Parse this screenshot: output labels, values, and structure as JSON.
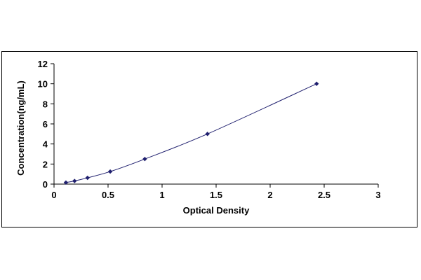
{
  "chart_data": {
    "type": "scatter",
    "xlabel": "Optical Density",
    "ylabel": "Concentration(ng/mL)",
    "xlim": [
      0,
      3
    ],
    "ylim": [
      0,
      12
    ],
    "xticks": [
      0,
      0.5,
      1,
      1.5,
      2,
      2.5,
      3
    ],
    "xtick_labels": [
      "0",
      "0.5",
      "1",
      "1.5",
      "2",
      "2.5",
      "3"
    ],
    "yticks": [
      0,
      2,
      4,
      6,
      8,
      10,
      12
    ],
    "ytick_labels": [
      "0",
      "2",
      "4",
      "6",
      "8",
      "10",
      "12"
    ],
    "grid": false,
    "legend": "none",
    "series": [
      {
        "x": [
          0.11,
          0.19,
          0.31,
          0.52,
          0.84,
          1.42,
          2.43
        ],
        "y": [
          0.156,
          0.312,
          0.625,
          1.25,
          2.5,
          5,
          10
        ],
        "marker": "diamond",
        "trendline": "smooth",
        "color": "#1f1f6e"
      }
    ]
  }
}
